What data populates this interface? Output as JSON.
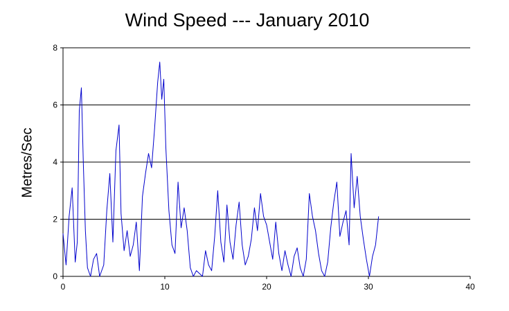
{
  "chart_data": {
    "type": "line",
    "title": "Wind Speed --- January 2010",
    "xlabel": "",
    "ylabel": "Metres/Sec",
    "xlim": [
      0,
      40
    ],
    "ylim": [
      0,
      8
    ],
    "x_ticks": [
      "0",
      "10",
      "20",
      "30",
      "40"
    ],
    "y_ticks": [
      "0",
      "2",
      "4",
      "6",
      "8"
    ],
    "grid": "horizontal",
    "line_color": "#0000cc",
    "series": [
      {
        "x": [
          0.0,
          0.3,
          0.6,
          0.9,
          1.2,
          1.4,
          1.6,
          1.8,
          2.0,
          2.2,
          2.4,
          2.7,
          3.0,
          3.3,
          3.6,
          4.0,
          4.3,
          4.6,
          4.9,
          5.2,
          5.5,
          5.7,
          6.0,
          6.3,
          6.6,
          6.9,
          7.2,
          7.5,
          7.8,
          8.1,
          8.4,
          8.7,
          9.0,
          9.3,
          9.5,
          9.7,
          9.9,
          10.1,
          10.4,
          10.7,
          11.0,
          11.3,
          11.6,
          11.9,
          12.2,
          12.5,
          12.8,
          13.1,
          13.4,
          13.7,
          14.0,
          14.3,
          14.6,
          14.9,
          15.2,
          15.5,
          15.8,
          16.1,
          16.4,
          16.7,
          17.0,
          17.3,
          17.6,
          17.9,
          18.2,
          18.5,
          18.8,
          19.1,
          19.4,
          19.7,
          20.0,
          20.3,
          20.6,
          20.9,
          21.2,
          21.5,
          21.8,
          22.1,
          22.4,
          22.7,
          23.0,
          23.3,
          23.6,
          23.9,
          24.2,
          24.5,
          24.8,
          25.1,
          25.4,
          25.7,
          26.0,
          26.3,
          26.6,
          26.9,
          27.2,
          27.5,
          27.8,
          28.1,
          28.3,
          28.6,
          28.9,
          29.2,
          29.5,
          29.8,
          30.1,
          30.4,
          30.7,
          31.0
        ],
        "y": [
          1.5,
          0.4,
          2.1,
          3.1,
          0.5,
          1.2,
          5.8,
          6.6,
          3.9,
          1.6,
          0.3,
          0.0,
          0.6,
          0.8,
          0.0,
          0.4,
          2.3,
          3.6,
          1.2,
          4.4,
          5.3,
          2.2,
          0.9,
          1.6,
          0.7,
          1.1,
          1.9,
          0.2,
          2.8,
          3.6,
          4.3,
          3.8,
          5.2,
          6.8,
          7.5,
          6.2,
          6.9,
          4.5,
          2.3,
          1.1,
          0.8,
          3.3,
          1.7,
          2.4,
          1.6,
          0.3,
          0.0,
          0.2,
          0.1,
          0.0,
          0.9,
          0.4,
          0.2,
          1.4,
          3.0,
          1.2,
          0.5,
          2.5,
          1.2,
          0.6,
          1.8,
          2.6,
          1.1,
          0.4,
          0.7,
          1.3,
          2.4,
          1.6,
          2.9,
          2.1,
          1.8,
          1.2,
          0.6,
          1.9,
          0.8,
          0.2,
          0.9,
          0.4,
          0.0,
          0.7,
          1.0,
          0.3,
          0.0,
          0.6,
          2.9,
          2.1,
          1.6,
          0.8,
          0.2,
          0.0,
          0.5,
          1.7,
          2.6,
          3.3,
          1.4,
          1.9,
          2.3,
          1.1,
          4.3,
          2.4,
          3.5,
          2.1,
          1.3,
          0.6,
          0.0,
          0.7,
          1.1,
          2.1
        ]
      }
    ]
  }
}
